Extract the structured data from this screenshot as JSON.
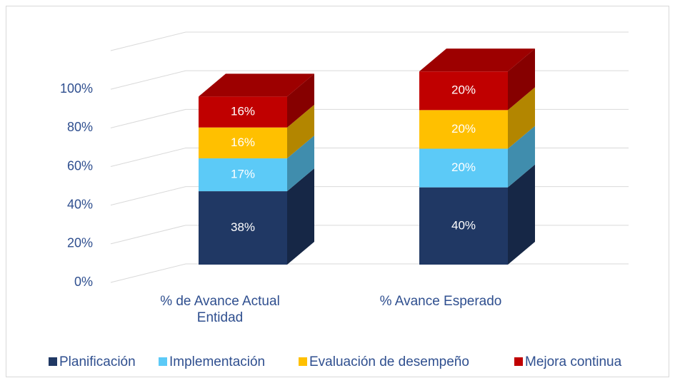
{
  "chart_data": {
    "type": "bar3d_stacked",
    "categories": [
      "% de Avance Actual Entidad",
      "% Avance Esperado"
    ],
    "series": [
      {
        "name": "Planificación",
        "color": "#203864",
        "values": [
          38,
          40
        ],
        "value_labels": [
          "38%",
          "40%"
        ]
      },
      {
        "name": "Implementación",
        "color": "#5ccaf7",
        "values": [
          17,
          20
        ],
        "value_labels": [
          "17%",
          "20%"
        ]
      },
      {
        "name": "Evaluación de desempeño",
        "color": "#ffc000",
        "values": [
          16,
          20
        ],
        "value_labels": [
          "16%",
          "20%"
        ]
      },
      {
        "name": "Mejora continua",
        "color": "#c00000",
        "values": [
          16,
          20
        ],
        "value_labels": [
          "16%",
          "20%"
        ]
      }
    ],
    "ylim": [
      0,
      120
    ],
    "yticks": [
      {
        "value": 0,
        "label": "0%"
      },
      {
        "value": 20,
        "label": "20%"
      },
      {
        "value": 40,
        "label": "40%"
      },
      {
        "value": 60,
        "label": "60%"
      },
      {
        "value": 80,
        "label": "80%"
      },
      {
        "value": 100,
        "label": "100%"
      }
    ],
    "grid": true,
    "legend": "bottom"
  }
}
